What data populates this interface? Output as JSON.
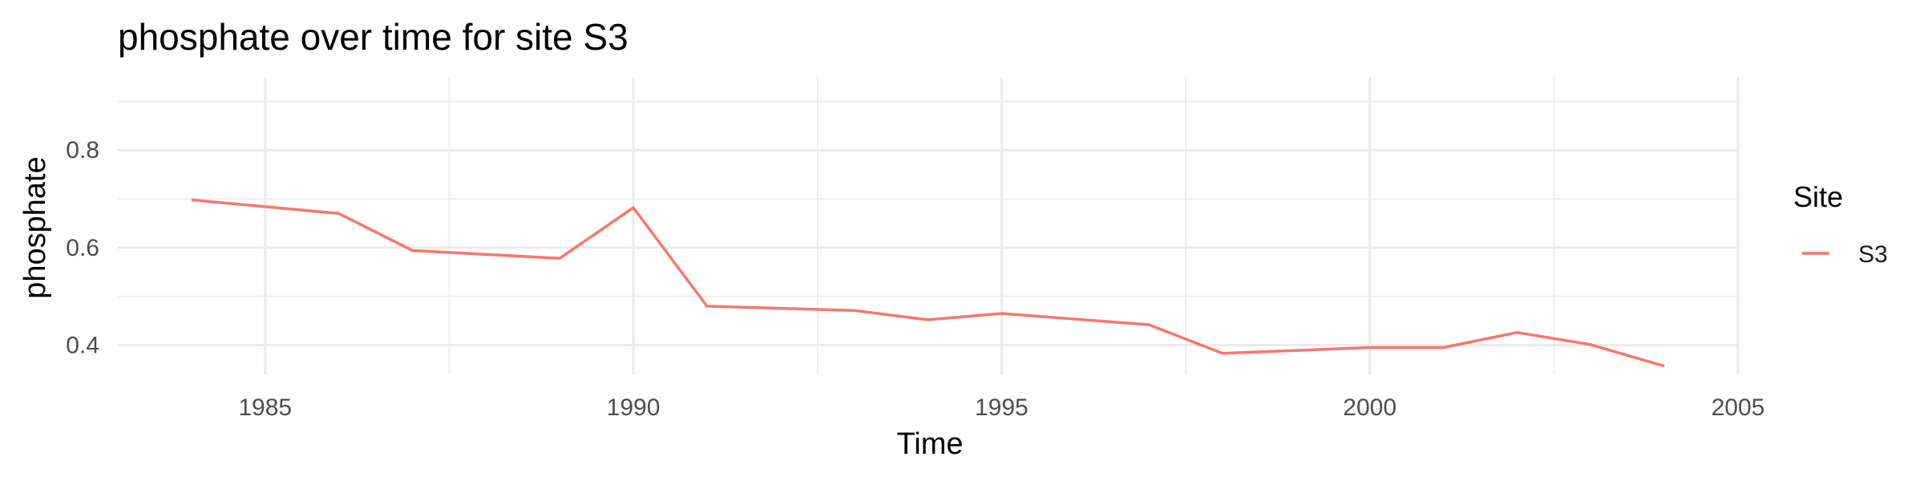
{
  "chart_data": {
    "type": "line",
    "title": "phosphate over time for site S3",
    "xlabel": "Time",
    "ylabel": "phosphate",
    "xlim": [
      1983,
      2005
    ],
    "ylim": [
      0.34,
      0.95
    ],
    "x_ticks": [
      1985,
      1990,
      1995,
      2000,
      2005
    ],
    "x_tick_labels": [
      "1985",
      "1990",
      "1995",
      "2000",
      "2005"
    ],
    "y_ticks": [
      0.4,
      0.6,
      0.8
    ],
    "y_tick_labels": [
      "0.4",
      "0.6",
      "0.8"
    ],
    "grid": true,
    "legend": {
      "title": "Site",
      "position": "right"
    },
    "series": [
      {
        "name": "S3",
        "color": "#F8766D",
        "x": [
          1984,
          1986,
          1987,
          1989,
          1990,
          1991,
          1993,
          1994,
          1995,
          1997,
          1998,
          2000,
          2001,
          2002,
          2003,
          2004
        ],
        "y": [
          0.698,
          0.67,
          0.594,
          0.578,
          0.682,
          0.48,
          0.471,
          0.452,
          0.465,
          0.442,
          0.383,
          0.395,
          0.395,
          0.426,
          0.401,
          0.357
        ]
      }
    ]
  }
}
